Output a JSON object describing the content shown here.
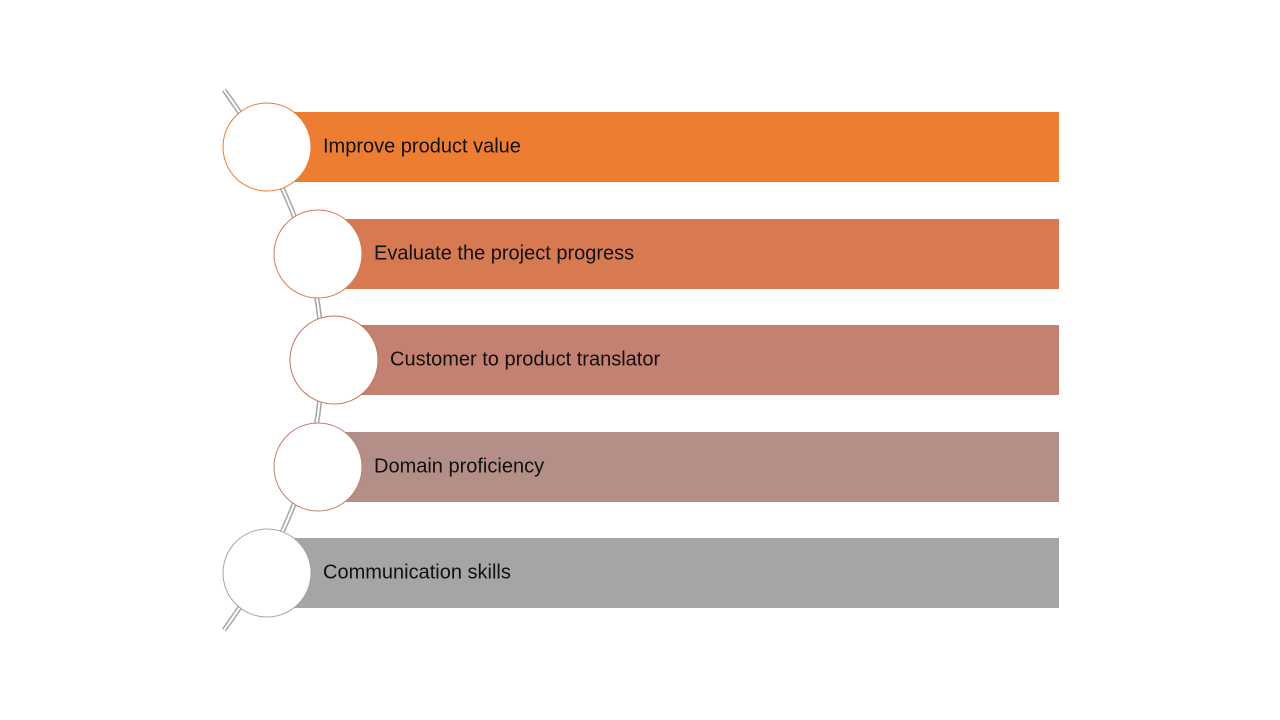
{
  "items": [
    {
      "label": "Improve product value"
    },
    {
      "label": "Evaluate the project progress"
    },
    {
      "label": "Customer to product translator"
    },
    {
      "label": "Domain proficiency"
    },
    {
      "label": "Communication skills"
    }
  ]
}
